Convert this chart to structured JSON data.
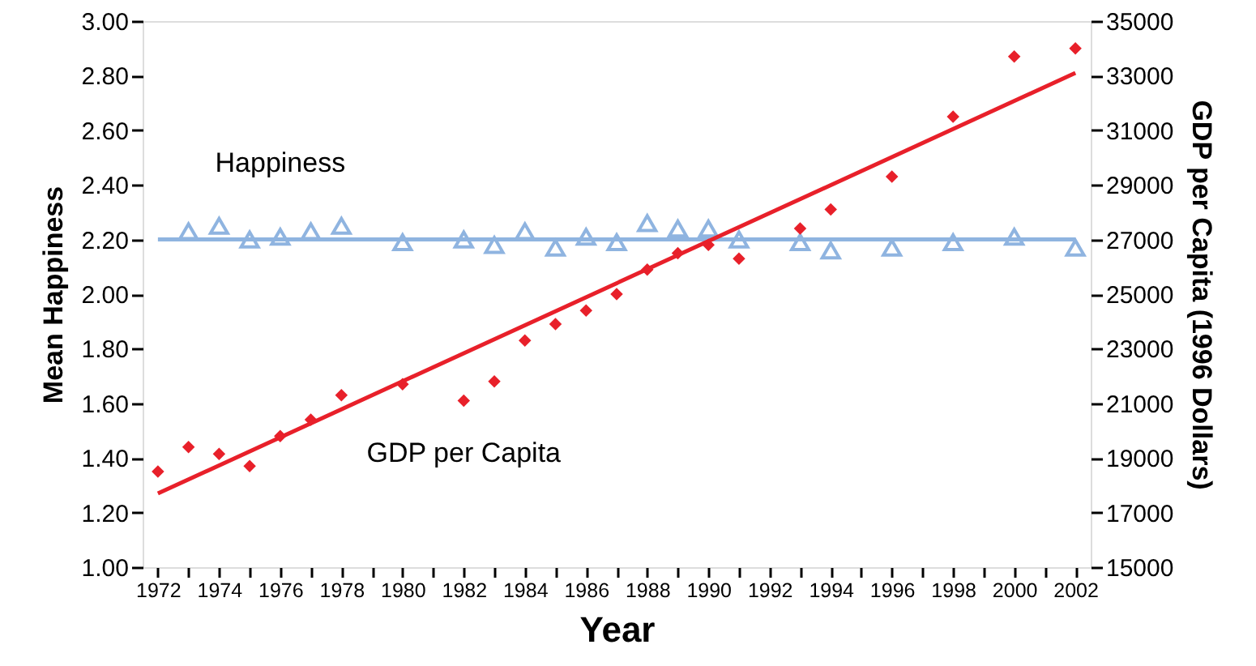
{
  "chart_data": {
    "type": "scatter",
    "xlabel": "Year",
    "ylabel": "Mean Happiness",
    "y2label": "GDP per Capita (1996 Dollars)",
    "xlim": [
      1971.5,
      2002.5
    ],
    "xticks": [
      1972,
      {
        "value": 1973,
        "label": null
      },
      1974,
      {
        "value": 1975,
        "label": null
      },
      1976,
      {
        "value": 1977,
        "label": null
      },
      1978,
      {
        "value": 1979,
        "label": null
      },
      1980,
      {
        "value": 1981,
        "label": null
      },
      1982,
      {
        "value": 1983,
        "label": null
      },
      1984,
      {
        "value": 1985,
        "label": null
      },
      1986,
      {
        "value": 1987,
        "label": null
      },
      1988,
      {
        "value": 1989,
        "label": null
      },
      1990,
      {
        "value": 1991,
        "label": null
      },
      1992,
      {
        "value": 1993,
        "label": null
      },
      1994,
      {
        "value": 1995,
        "label": null
      },
      1996,
      {
        "value": 1997,
        "label": null
      },
      1998,
      {
        "value": 1999,
        "label": null
      },
      2000,
      {
        "value": 2001,
        "label": null
      },
      2002
    ],
    "ylim": [
      1,
      3
    ],
    "yticks": [
      {
        "value": 1,
        "label": "1.00"
      },
      {
        "value": 1.2,
        "label": "1.20"
      },
      {
        "value": 1.4,
        "label": "1.40"
      },
      {
        "value": 1.6,
        "label": "1.60"
      },
      {
        "value": 1.8,
        "label": "1.80"
      },
      {
        "value": 2,
        "label": "2.00"
      },
      {
        "value": 2.2,
        "label": "2.20"
      },
      {
        "value": 2.4,
        "label": "2.40"
      },
      {
        "value": 2.6,
        "label": "2.60"
      },
      {
        "value": 2.8,
        "label": "2.80"
      },
      {
        "value": 3,
        "label": "3.00"
      }
    ],
    "y2lim": [
      15000,
      35000
    ],
    "y2ticks": [
      15000,
      17000,
      19000,
      21000,
      23000,
      25000,
      27000,
      29000,
      31000,
      33000,
      35000
    ],
    "series": [
      {
        "name": "Happiness",
        "marker": "triangle",
        "color": "#8fb4e0",
        "x": [
          1973,
          1974,
          1975,
          1976,
          1977,
          1978,
          1980,
          1982,
          1983,
          1984,
          1985,
          1986,
          1987,
          1988,
          1989,
          1990,
          1991,
          1993,
          1994,
          1996,
          1998,
          2000,
          2002
        ],
        "values": [
          2.23,
          2.25,
          2.2,
          2.21,
          2.23,
          2.25,
          2.19,
          2.2,
          2.18,
          2.23,
          2.17,
          2.21,
          2.19,
          2.26,
          2.24,
          2.24,
          2.2,
          2.19,
          2.16,
          2.17,
          2.19,
          2.21,
          2.17
        ]
      },
      {
        "type": "line",
        "line_style": "solid",
        "color": "#8fb4e0",
        "x": [
          1972,
          2002
        ],
        "values": [
          2.2,
          2.2
        ]
      },
      {
        "name": "GDP per Capita",
        "marker": "diamond",
        "axis": "y2",
        "color": "#e8202a",
        "x": [
          1972,
          1973,
          1974,
          1975,
          1976,
          1977,
          1978,
          1980,
          1982,
          1983,
          1984,
          1985,
          1986,
          1987,
          1988,
          1989,
          1990,
          1991,
          1993,
          1994,
          1996,
          1998,
          2000,
          2002
        ],
        "values": [
          18500,
          19400,
          19150,
          18700,
          19800,
          20400,
          21300,
          21700,
          21100,
          21800,
          23300,
          23900,
          24400,
          25000,
          25900,
          26500,
          26800,
          26300,
          27400,
          28100,
          29300,
          31500,
          33700,
          34000
        ]
      },
      {
        "type": "line",
        "line_style": "solid",
        "axis": "y2",
        "color": "#e8202a",
        "x": [
          1972,
          2002
        ],
        "values": [
          17700,
          33100
        ]
      }
    ]
  }
}
